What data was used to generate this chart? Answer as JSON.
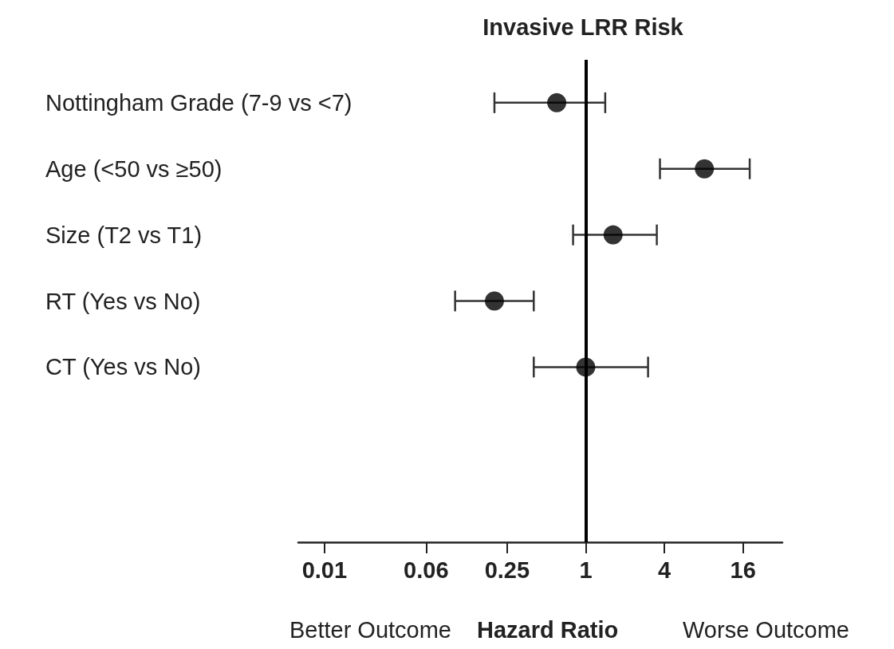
{
  "chart_data": {
    "type": "scatter",
    "orientation": "horizontal",
    "title": "Invasive LRR Risk",
    "xlabel": "Hazard Ratio",
    "categories": [
      "Nottingham Grade (7-9 vs <7)",
      "Age (<50 vs ≥50)",
      "Size (T2 vs T1)",
      "RT (Yes vs No)",
      "CT (Yes vs No)"
    ],
    "values": [
      0.6,
      8.1,
      1.62,
      0.2,
      1.0
    ],
    "errors": [
      [
        0.2,
        1.41
      ],
      [
        3.7,
        18
      ],
      [
        0.8,
        3.5
      ],
      [
        0.1,
        0.4
      ],
      [
        0.4,
        3.0
      ]
    ],
    "color": "#000000",
    "marker": "circle",
    "log": "x",
    "xlim": [
      0.0063,
      32
    ],
    "xticks": [
      0.01,
      0.06,
      0.25,
      1,
      4,
      16
    ],
    "ref_lines": [
      {
        "axis": "x",
        "value": 1,
        "color": "#000000"
      }
    ],
    "grid": false,
    "annotations": [
      "Better Outcome",
      "Worse Outcome"
    ]
  }
}
